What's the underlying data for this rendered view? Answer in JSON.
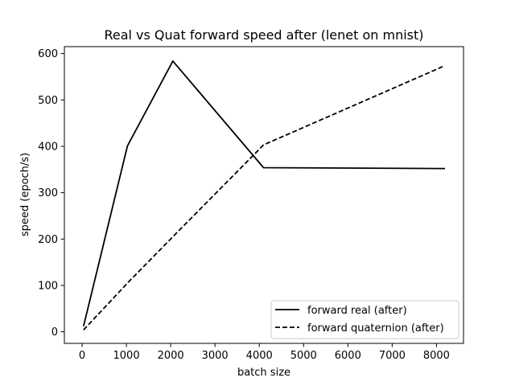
{
  "chart_data": {
    "type": "line",
    "title": "Real vs Quat forward speed after (lenet on mnist)",
    "xlabel": "batch size",
    "ylabel": "speed (epoch/s)",
    "xlim": [
      -400,
      8610
    ],
    "ylim": [
      -25,
      615
    ],
    "xticks": [
      0,
      1000,
      2000,
      3000,
      4000,
      5000,
      6000,
      7000,
      8000
    ],
    "yticks": [
      0,
      100,
      200,
      300,
      400,
      500,
      600
    ],
    "grid": false,
    "legend_position": "lower-right",
    "series": [
      {
        "name": "forward real (after)",
        "line_style": "solid",
        "color": "#000000",
        "x": [
          32,
          1024,
          2048,
          4096,
          8192
        ],
        "y": [
          12,
          401,
          584,
          354,
          352
        ]
      },
      {
        "name": "forward quaternion (after)",
        "line_style": "dashed",
        "color": "#000000",
        "x": [
          32,
          1024,
          2048,
          4096,
          8192
        ],
        "y": [
          4,
          105,
          205,
          403,
          574
        ]
      }
    ]
  }
}
